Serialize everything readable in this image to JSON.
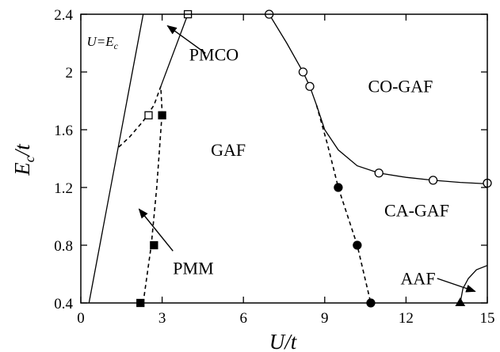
{
  "chart_data": {
    "type": "scatter",
    "xlabel": "U/t",
    "ylabel": "E_c/t",
    "xlim": [
      0,
      15
    ],
    "ylim": [
      0.4,
      2.4
    ],
    "xticks": [
      0,
      3,
      6,
      9,
      12,
      15
    ],
    "yticks": [
      0.4,
      0.8,
      1.2,
      1.6,
      2.0,
      2.4
    ],
    "xtick_labels": [
      "0",
      "3",
      "6",
      "9",
      "12",
      "15"
    ],
    "ytick_labels": [
      "0.4",
      "0.8",
      "1.2",
      "1.6",
      "2",
      "2.4"
    ],
    "grid": false,
    "curves": [
      {
        "style": "solid",
        "points": [
          [
            0.3,
            0.4
          ],
          [
            2.3,
            2.4
          ]
        ]
      },
      {
        "style": "solid",
        "points": [
          [
            2.95,
            1.9
          ],
          [
            3.95,
            2.4
          ]
        ]
      },
      {
        "style": "dashed",
        "points": [
          [
            1.4,
            1.48
          ],
          [
            1.8,
            1.55
          ],
          [
            2.3,
            1.66
          ],
          [
            2.7,
            1.77
          ],
          [
            2.95,
            1.9
          ],
          [
            3.0,
            1.72
          ]
        ]
      },
      {
        "style": "dashed",
        "points": [
          [
            2.3,
            0.4
          ],
          [
            2.6,
            0.8
          ],
          [
            2.8,
            1.2
          ],
          [
            3.0,
            1.72
          ]
        ]
      },
      {
        "style": "solid",
        "points": [
          [
            6.95,
            2.4
          ],
          [
            7.6,
            2.2
          ],
          [
            8.2,
            2.0
          ],
          [
            8.45,
            1.9
          ],
          [
            8.7,
            1.77
          ],
          [
            9.0,
            1.6
          ],
          [
            9.5,
            1.46
          ],
          [
            10.2,
            1.35
          ],
          [
            11.0,
            1.3
          ],
          [
            12.0,
            1.27
          ],
          [
            13.0,
            1.25
          ],
          [
            14.0,
            1.235
          ],
          [
            15.0,
            1.225
          ]
        ]
      },
      {
        "style": "dashed",
        "points": [
          [
            8.7,
            1.77
          ],
          [
            9.1,
            1.5
          ],
          [
            9.5,
            1.2
          ],
          [
            10.2,
            0.8
          ],
          [
            10.7,
            0.4
          ]
        ]
      },
      {
        "style": "solid",
        "points": [
          [
            14.0,
            0.4
          ],
          [
            14.1,
            0.5
          ],
          [
            14.3,
            0.57
          ],
          [
            14.6,
            0.63
          ],
          [
            15.0,
            0.66
          ]
        ]
      }
    ],
    "series": [
      {
        "marker": "open-square",
        "points": [
          [
            2.5,
            1.7
          ],
          [
            3.95,
            2.4
          ]
        ]
      },
      {
        "marker": "filled-square",
        "points": [
          [
            2.2,
            0.4
          ],
          [
            2.7,
            0.8
          ],
          [
            3.0,
            1.7
          ]
        ]
      },
      {
        "marker": "open-circle",
        "points": [
          [
            6.95,
            2.4
          ],
          [
            8.2,
            2.0
          ],
          [
            8.45,
            1.9
          ],
          [
            11.0,
            1.3
          ],
          [
            13.0,
            1.25
          ],
          [
            15.0,
            1.23
          ]
        ]
      },
      {
        "marker": "filled-circle",
        "points": [
          [
            9.5,
            1.2
          ],
          [
            10.2,
            0.8
          ],
          [
            10.7,
            0.4
          ]
        ]
      },
      {
        "marker": "filled-triangle",
        "points": [
          [
            14.0,
            0.4
          ]
        ]
      }
    ],
    "annotations": [
      {
        "key": "pmco",
        "text": "PMCO",
        "x": 4.0,
        "y": 2.08,
        "arrow_from": [
          4.6,
          2.13
        ],
        "arrow_to": [
          3.2,
          2.32
        ]
      },
      {
        "key": "pmm",
        "text": "PMM",
        "x": 3.4,
        "y": 0.6,
        "arrow_from": [
          3.4,
          0.76
        ],
        "arrow_to": [
          2.15,
          1.05
        ]
      },
      {
        "key": "aaf",
        "text": "AAF",
        "x": 11.8,
        "y": 0.53,
        "arrow_from": [
          13.15,
          0.57
        ],
        "arrow_to": [
          14.55,
          0.48
        ]
      },
      {
        "key": "gaf",
        "text": "GAF",
        "x": 4.8,
        "y": 1.42
      },
      {
        "key": "cogaf",
        "text": "CO-GAF",
        "x": 10.6,
        "y": 1.86
      },
      {
        "key": "cagaf",
        "text": "CA-GAF",
        "x": 11.2,
        "y": 1.0
      }
    ],
    "line_label": {
      "text": "U=E",
      "subscript": "c",
      "x": 0.22,
      "y": 2.18
    }
  }
}
